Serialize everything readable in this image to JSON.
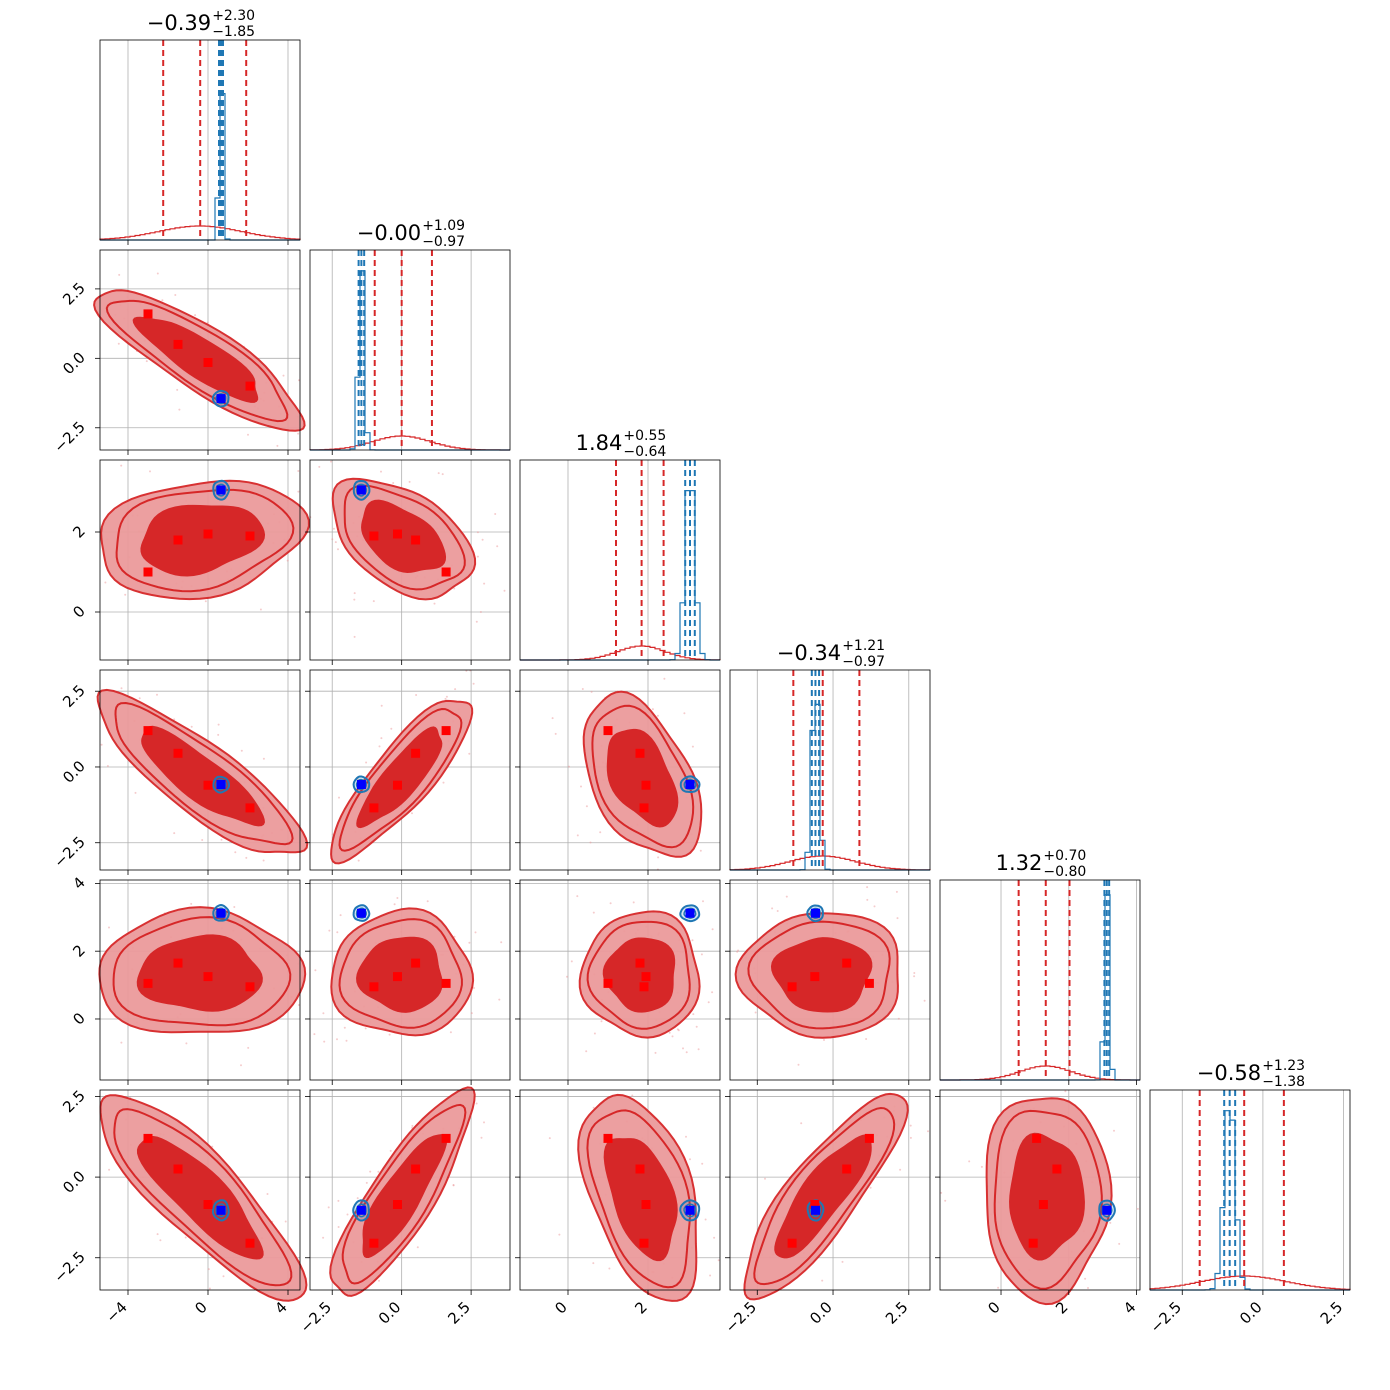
{
  "chart_data": {
    "type": "corner",
    "colors": {
      "primary": "#d62728",
      "primary_fill_inner": "#d62728",
      "primary_fill_outer": "#ec9a9b",
      "secondary": "#1f77b4",
      "marker_primary": "#ff0000",
      "marker_secondary": "#0000ff",
      "grid": "#b0b0b0"
    },
    "parameters": [
      {
        "index": 0,
        "title": {
          "median": "−0.39",
          "plus": "+2.30",
          "minus": "−1.85"
        },
        "primary_quantiles": [
          -2.24,
          -0.39,
          1.91
        ],
        "secondary_quantiles": [
          0.55,
          0.65,
          0.75
        ],
        "range": [
          -5.4,
          4.6
        ],
        "ticks": [
          -4,
          0,
          4
        ],
        "tick_labels": [
          "−4",
          "0",
          "4"
        ]
      },
      {
        "index": 1,
        "title": {
          "median": "−0.00",
          "plus": "+1.09",
          "minus": "−0.97"
        },
        "primary_quantiles": [
          -0.97,
          0.0,
          1.09
        ],
        "secondary_quantiles": [
          -1.55,
          -1.45,
          -1.35
        ],
        "range": [
          -3.3,
          3.9
        ],
        "ticks": [
          -2.5,
          0.0,
          2.5
        ],
        "tick_labels": [
          "−2.5",
          "0.0",
          "2.5"
        ]
      },
      {
        "index": 2,
        "title": {
          "median": "1.84",
          "plus": "+0.55",
          "minus": "−0.64"
        },
        "primary_quantiles": [
          1.2,
          1.84,
          2.39
        ],
        "secondary_quantiles": [
          2.93,
          3.05,
          3.17
        ],
        "range": [
          -1.2,
          3.8
        ],
        "ticks": [
          0,
          2
        ],
        "tick_labels": [
          "0",
          "2"
        ]
      },
      {
        "index": 3,
        "title": {
          "median": "−0.34",
          "plus": "+1.21",
          "minus": "−0.97"
        },
        "primary_quantiles": [
          -1.31,
          -0.34,
          0.87
        ],
        "secondary_quantiles": [
          -0.7,
          -0.58,
          -0.46
        ],
        "range": [
          -3.4,
          3.2
        ],
        "ticks": [
          -2.5,
          0.0,
          2.5
        ],
        "tick_labels": [
          "−2.5",
          "0.0",
          "2.5"
        ]
      },
      {
        "index": 4,
        "title": {
          "median": "1.32",
          "plus": "+0.70",
          "minus": "−0.80"
        },
        "primary_quantiles": [
          0.52,
          1.32,
          2.02
        ],
        "secondary_quantiles": [
          3.05,
          3.12,
          3.19
        ],
        "range": [
          -1.8,
          4.1
        ],
        "ticks": [
          0,
          2,
          4
        ],
        "tick_labels": [
          "0",
          "2",
          "4"
        ]
      },
      {
        "index": 5,
        "title": {
          "median": "−0.58",
          "plus": "+1.23",
          "minus": "−1.38"
        },
        "primary_quantiles": [
          -1.96,
          -0.58,
          0.65
        ],
        "secondary_quantiles": [
          -1.2,
          -1.03,
          -0.86
        ],
        "range": [
          -3.5,
          2.7
        ],
        "ticks": [
          -2.5,
          0.0,
          2.5
        ],
        "tick_labels": [
          "−2.5",
          "0.0",
          "2.5"
        ]
      }
    ],
    "primary_histogram_peak_fraction": 0.07,
    "secondary_histogram_peak_fraction": 0.97,
    "primary_markers": [
      [
        -3.0,
        1.6,
        1.0,
        1.2,
        1.05,
        1.2
      ],
      [
        -1.5,
        0.5,
        1.8,
        0.45,
        1.65,
        0.25
      ],
      [
        0.0,
        -0.15,
        1.95,
        -0.6,
        1.25,
        -0.85
      ],
      [
        2.1,
        -1.0,
        1.9,
        -1.35,
        0.95,
        -2.05
      ]
    ],
    "secondary_marker": [
      0.65,
      -1.45,
      3.05,
      -0.58,
      3.12,
      -1.03
    ],
    "primary_2d_cloud": {
      "center": [
        -0.39,
        0.0,
        1.84,
        -0.34,
        1.32,
        -0.58
      ],
      "spread": [
        2.1,
        1.03,
        0.6,
        1.09,
        0.75,
        1.3
      ],
      "correlation": [
        [
          1.0,
          -0.85,
          0.2,
          -0.85,
          0.0,
          -0.85
        ],
        [
          -0.85,
          1.0,
          -0.45,
          0.85,
          0.0,
          0.85
        ],
        [
          0.2,
          -0.45,
          1.0,
          -0.45,
          0.0,
          -0.45
        ],
        [
          -0.85,
          0.85,
          -0.45,
          1.0,
          0.0,
          0.85
        ],
        [
          0.0,
          0.0,
          0.0,
          0.0,
          1.0,
          0.0
        ],
        [
          -0.85,
          0.85,
          -0.45,
          0.85,
          0.0,
          1.0
        ]
      ]
    },
    "secondary_2d_cloud": {
      "center": [
        0.65,
        -1.45,
        3.05,
        -0.58,
        3.12,
        -1.03
      ],
      "spread": [
        0.06,
        0.07,
        0.09,
        0.09,
        0.05,
        0.12
      ],
      "correlation": [
        [
          1.0,
          0,
          0,
          0,
          0,
          0
        ],
        [
          0,
          1.0,
          0,
          0,
          0,
          0
        ],
        [
          0,
          0,
          1.0,
          0,
          0,
          0
        ],
        [
          0,
          0,
          0,
          1.0,
          0,
          0
        ],
        [
          0,
          0,
          0,
          0,
          1.0,
          0
        ],
        [
          0,
          0,
          0,
          0,
          0,
          1.0
        ]
      ]
    }
  }
}
